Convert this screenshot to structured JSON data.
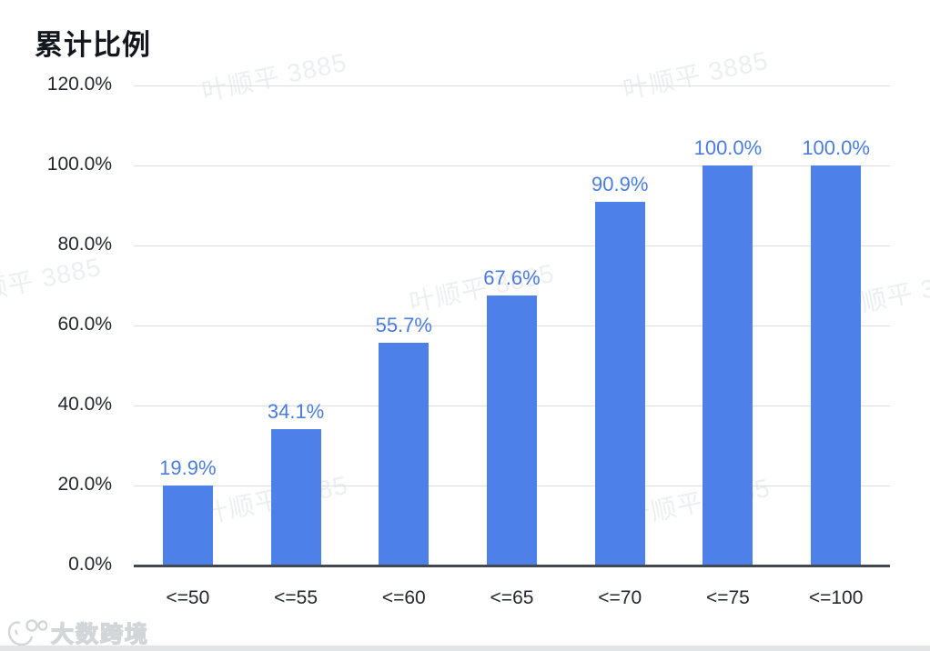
{
  "page": {
    "title": "累计比例",
    "watermark_text": "叶顺平 3885",
    "brand_watermark": "大数跨境"
  },
  "chart_data": {
    "type": "bar",
    "title": "累计比例",
    "categories": [
      "<=50",
      "<=55",
      "<=60",
      "<=65",
      "<=70",
      "<=75",
      "<=100"
    ],
    "values": [
      19.9,
      34.1,
      55.7,
      67.6,
      90.9,
      100.0,
      100.0
    ],
    "value_labels": [
      "19.9%",
      "34.1%",
      "55.7%",
      "67.6%",
      "90.9%",
      "100.0%",
      "100.0%"
    ],
    "xlabel": "",
    "ylabel": "",
    "ylim": [
      0,
      120
    ],
    "ytick_step": 20,
    "ytick_labels": [
      "0.0%",
      "20.0%",
      "40.0%",
      "60.0%",
      "80.0%",
      "100.0%",
      "120.0%"
    ],
    "grid": true,
    "legend_position": "none"
  },
  "colors": {
    "bar": "#4d80e8",
    "value_label": "#4a7ce0",
    "axis_text": "#23272e",
    "title_text": "#14181e",
    "gridline": "#dcdee1",
    "axis_line": "#43474e",
    "watermark": "#eceef1",
    "bottom_strip": "#e3e4e6"
  }
}
